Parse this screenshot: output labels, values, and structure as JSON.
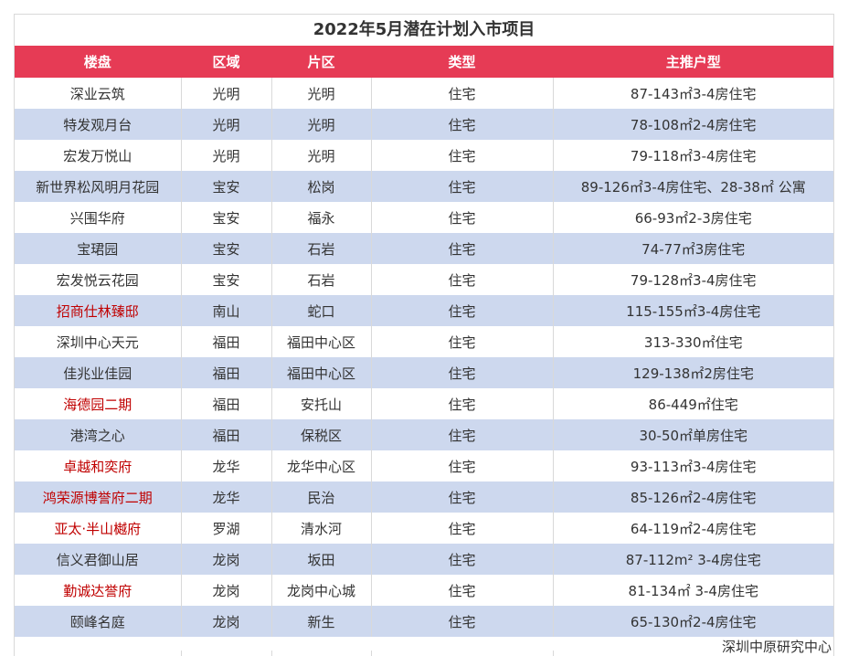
{
  "title": "2022年5月潜在计划入市项目",
  "headers": [
    "楼盘",
    "区域",
    "片区",
    "类型",
    "主推户型"
  ],
  "rows": [
    {
      "name": "深业云筑",
      "region": "光明",
      "area": "光明",
      "type": "住宅",
      "layout": "87-143㎡3-4房住宅",
      "highlight": false
    },
    {
      "name": "特发观月台",
      "region": "光明",
      "area": "光明",
      "type": "住宅",
      "layout": "78-108㎡2-4房住宅",
      "highlight": false
    },
    {
      "name": "宏发万悦山",
      "region": "光明",
      "area": "光明",
      "type": "住宅",
      "layout": "79-118㎡3-4房住宅",
      "highlight": false
    },
    {
      "name": "新世界松风明月花园",
      "region": "宝安",
      "area": "松岗",
      "type": "住宅",
      "layout": "89-126㎡3-4房住宅、28-38㎡ 公寓",
      "highlight": false
    },
    {
      "name": "兴围华府",
      "region": "宝安",
      "area": "福永",
      "type": "住宅",
      "layout": "66-93㎡2-3房住宅",
      "highlight": false
    },
    {
      "name": "宝珺园",
      "region": "宝安",
      "area": "石岩",
      "type": "住宅",
      "layout": "74-77㎡3房住宅",
      "highlight": false
    },
    {
      "name": "宏发悦云花园",
      "region": "宝安",
      "area": "石岩",
      "type": "住宅",
      "layout": "79-128㎡3-4房住宅",
      "highlight": false
    },
    {
      "name": "招商仕林臻邸",
      "region": "南山",
      "area": "蛇口",
      "type": "住宅",
      "layout": "115-155㎡3-4房住宅",
      "highlight": true
    },
    {
      "name": "深圳中心天元",
      "region": "福田",
      "area": "福田中心区",
      "type": "住宅",
      "layout": "313-330㎡住宅",
      "highlight": false
    },
    {
      "name": "佳兆业佳园",
      "region": "福田",
      "area": "福田中心区",
      "type": "住宅",
      "layout": "129-138㎡2房住宅",
      "highlight": false
    },
    {
      "name": "海德园二期",
      "region": "福田",
      "area": "安托山",
      "type": "住宅",
      "layout": "86-449㎡住宅",
      "highlight": true
    },
    {
      "name": "港湾之心",
      "region": "福田",
      "area": "保税区",
      "type": "住宅",
      "layout": "30-50㎡单房住宅",
      "highlight": false
    },
    {
      "name": "卓越和奕府",
      "region": "龙华",
      "area": "龙华中心区",
      "type": "住宅",
      "layout": "93-113㎡3-4房住宅",
      "highlight": true
    },
    {
      "name": "鸿荣源博誉府二期",
      "region": "龙华",
      "area": "民治",
      "type": "住宅",
      "layout": "85-126㎡2-4房住宅",
      "highlight": true
    },
    {
      "name": "亚太·半山樾府",
      "region": "罗湖",
      "area": "清水河",
      "type": "住宅",
      "layout": "64-119㎡2-4房住宅",
      "highlight": true
    },
    {
      "name": "信义君御山居",
      "region": "龙岗",
      "area": "坂田",
      "type": "住宅",
      "layout": "87-112m² 3-4房住宅",
      "highlight": false
    },
    {
      "name": "勤诚达誉府",
      "region": "龙岗",
      "area": "龙岗中心城",
      "type": "住宅",
      "layout": "81-134㎡ 3-4房住宅",
      "highlight": true
    },
    {
      "name": "颐峰名庭",
      "region": "龙岗",
      "area": "新生",
      "type": "住宅",
      "layout": "65-130㎡2-4房住宅",
      "highlight": false
    }
  ],
  "source": "深圳中原研究中心",
  "colors": {
    "header_bg": "#e63b55",
    "stripe": "#cdd8ee",
    "highlight_text": "#c00000"
  }
}
